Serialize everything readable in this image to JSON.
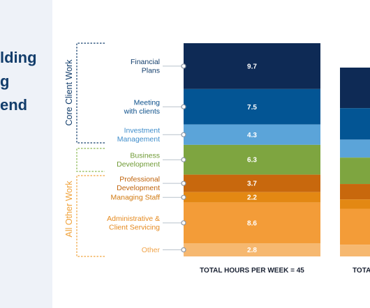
{
  "panel": {
    "title_lines": [
      "lding",
      "g",
      "end"
    ],
    "title_color": "#123d6b",
    "background": "#eef2f8"
  },
  "chart_data": {
    "type": "bar",
    "stacked": true,
    "title": "",
    "xlabel": "",
    "ylabel": "",
    "groups": [
      {
        "label": "Core Client Work",
        "color": "#123d6b",
        "categories": [
          "Financial Plans",
          "Meeting with clients",
          "Investment Management"
        ]
      },
      {
        "label": "All Other Work",
        "color": "#f0a23a",
        "categories": [
          "Business Development",
          "Professional Development",
          "Managing Staff",
          "Administrative & Client Servicing",
          "Other"
        ]
      }
    ],
    "categories": [
      {
        "label_lines": [
          "Financial",
          "Plans"
        ],
        "color": "#0e2a55",
        "label_color": "#123d6b"
      },
      {
        "label_lines": [
          "Meeting",
          "with clients"
        ],
        "color": "#035594",
        "label_color": "#0b4f8a"
      },
      {
        "label_lines": [
          "Investment",
          "Management"
        ],
        "color": "#5ba4d9",
        "label_color": "#3f8dcb"
      },
      {
        "label_lines": [
          "Business",
          "Development"
        ],
        "color": "#7ea540",
        "label_color": "#6f9a35"
      },
      {
        "label_lines": [
          "Professional",
          "Development"
        ],
        "color": "#c8680d",
        "label_color": "#c0630b"
      },
      {
        "label_lines": [
          "Managing Staff"
        ],
        "color": "#e38813",
        "label_color": "#d17a10"
      },
      {
        "label_lines": [
          "Administrative &",
          "Client Servicing"
        ],
        "color": "#f39c38",
        "label_color": "#e58a1f"
      },
      {
        "label_lines": [
          "Other"
        ],
        "color": "#f6b870",
        "label_color": "#f0a44a"
      }
    ],
    "series": [
      {
        "name": "",
        "values": [
          9.7,
          7.5,
          4.3,
          6.3,
          3.7,
          2.2,
          8.6,
          2.8
        ],
        "total_label": "TOTAL HOURS PER WEEK = 45"
      },
      {
        "name": "",
        "values": [
          null,
          null,
          null,
          null,
          null,
          null,
          null,
          null
        ],
        "total_label": "TOTA"
      }
    ]
  }
}
